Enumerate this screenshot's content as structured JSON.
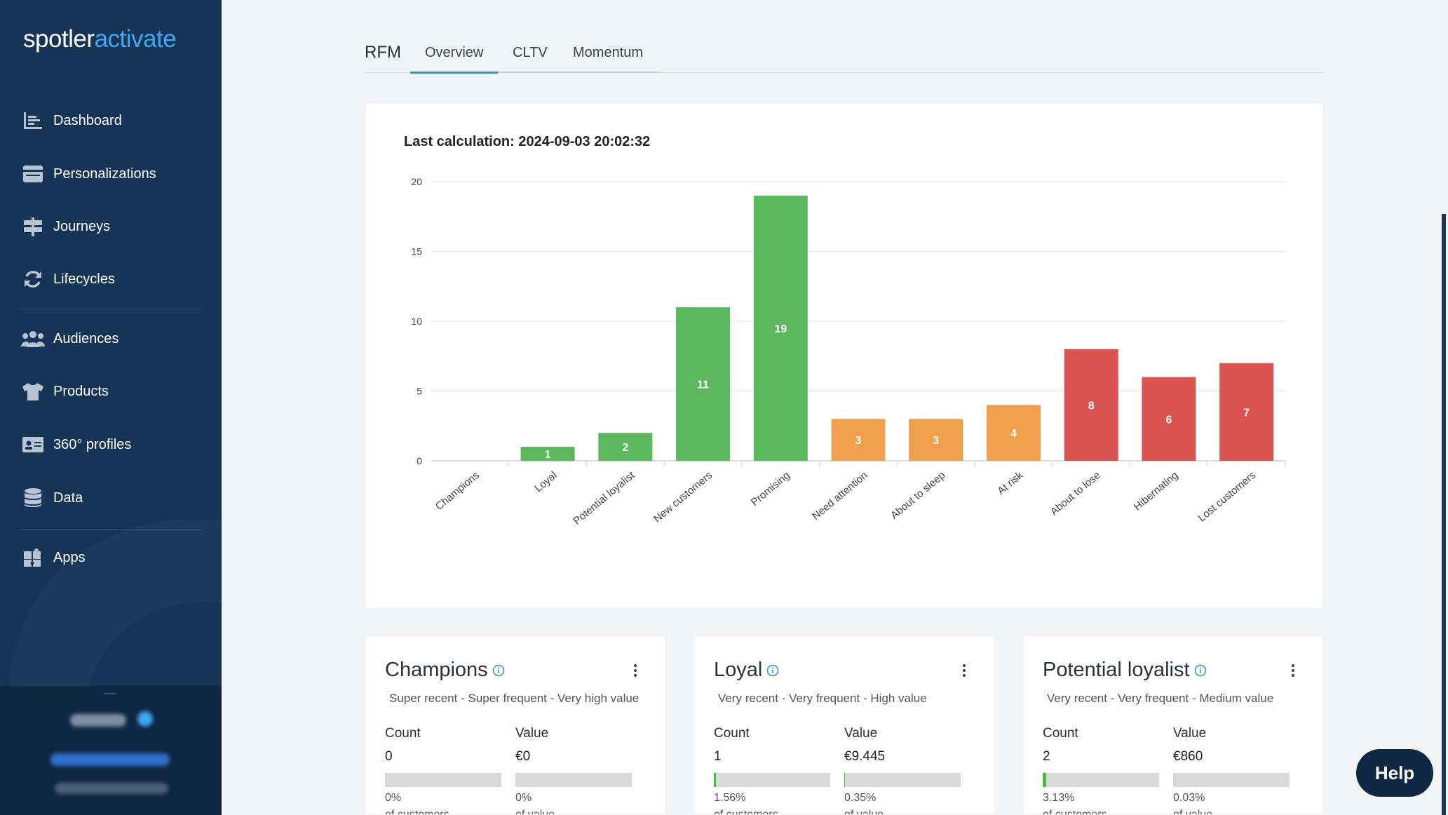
{
  "brand": {
    "part1": "spotler",
    "part2": "activate"
  },
  "sidebar": {
    "items": [
      {
        "label": "Dashboard",
        "icon": "dashboard-icon"
      },
      {
        "label": "Personalizations",
        "icon": "personalization-icon"
      },
      {
        "label": "Journeys",
        "icon": "signpost-icon"
      },
      {
        "label": "Lifecycles",
        "icon": "refresh-icon"
      },
      {
        "label": "Audiences",
        "icon": "people-icon"
      },
      {
        "label": "Products",
        "icon": "shirt-icon"
      },
      {
        "label": "360° profiles",
        "icon": "id-card-icon"
      },
      {
        "label": "Data",
        "icon": "database-icon"
      },
      {
        "label": "Apps",
        "icon": "puzzle-icon"
      }
    ]
  },
  "tabs": {
    "title": "RFM",
    "items": [
      "Overview",
      "CLTV",
      "Momentum"
    ],
    "active": "Overview"
  },
  "chart_card": {
    "title": "Last calculation: 2024-09-03 20:02:32"
  },
  "chart_data": {
    "type": "bar",
    "categories": [
      "Champions",
      "Loyal",
      "Potential loyalist",
      "New customers",
      "Promising",
      "Need attention",
      "About to sleep",
      "At risk",
      "About to lose",
      "Hibernating",
      "Lost customers"
    ],
    "values": [
      0,
      1,
      2,
      11,
      19,
      3,
      3,
      4,
      8,
      6,
      7
    ],
    "colors": [
      "#5cb85c",
      "#5cb85c",
      "#5cb85c",
      "#5cb85c",
      "#5cb85c",
      "#f0a04b",
      "#f0a04b",
      "#f0a04b",
      "#d9534f",
      "#d9534f",
      "#d9534f"
    ],
    "yticks": [
      0,
      5,
      10,
      15,
      20
    ],
    "ylim": [
      0,
      20
    ],
    "grid": true,
    "data_labels": true
  },
  "segments": [
    {
      "name": "Champions",
      "desc": "Super recent - Super frequent - Very high value",
      "count_label": "Count",
      "value_label": "Value",
      "count": "0",
      "value": "€0",
      "count_pct": "0%",
      "value_pct": "0%",
      "count_frac": 0,
      "value_frac": 0,
      "count_sub": "of customers",
      "value_sub": "of value"
    },
    {
      "name": "Loyal",
      "desc": "Very recent - Very frequent - High value",
      "count_label": "Count",
      "value_label": "Value",
      "count": "1",
      "value": "€9.445",
      "count_pct": "1.56%",
      "value_pct": "0.35%",
      "count_frac": 0.0156,
      "value_frac": 0.0035,
      "count_sub": "of customers",
      "value_sub": "of value"
    },
    {
      "name": "Potential loyalist",
      "desc": "Very recent - Very frequent - Medium value",
      "count_label": "Count",
      "value_label": "Value",
      "count": "2",
      "value": "€860",
      "count_pct": "3.13%",
      "value_pct": "0.03%",
      "count_frac": 0.0313,
      "value_frac": 0.0003,
      "count_sub": "of customers",
      "value_sub": "of value"
    }
  ],
  "help": {
    "label": "Help"
  }
}
